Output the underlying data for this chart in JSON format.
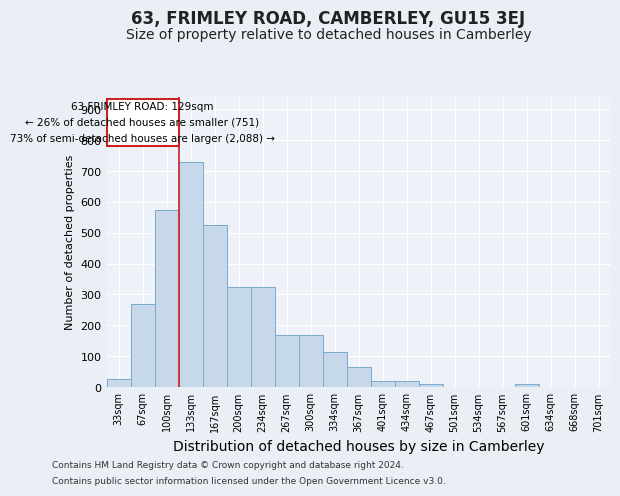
{
  "title": "63, FRIMLEY ROAD, CAMBERLEY, GU15 3EJ",
  "subtitle": "Size of property relative to detached houses in Camberley",
  "xlabel": "Distribution of detached houses by size in Camberley",
  "ylabel": "Number of detached properties",
  "categories": [
    "33sqm",
    "67sqm",
    "100sqm",
    "133sqm",
    "167sqm",
    "200sqm",
    "234sqm",
    "267sqm",
    "300sqm",
    "334sqm",
    "367sqm",
    "401sqm",
    "434sqm",
    "467sqm",
    "501sqm",
    "534sqm",
    "567sqm",
    "601sqm",
    "634sqm",
    "668sqm",
    "701sqm"
  ],
  "values": [
    25,
    270,
    575,
    730,
    525,
    325,
    325,
    170,
    170,
    115,
    65,
    20,
    20,
    10,
    0,
    0,
    0,
    10,
    0,
    0,
    0
  ],
  "bar_color": "#c8d8eb",
  "bar_edge_color": "#7aaac8",
  "annotation_line1": "63 FRIMLEY ROAD: 129sqm",
  "annotation_line2": "← 26% of detached houses are smaller (751)",
  "annotation_line3": "73% of semi-detached houses are larger (2,088) →",
  "vline_color": "#cc2222",
  "vline_bar_index": 3,
  "ylim": [
    0,
    940
  ],
  "yticks": [
    0,
    100,
    200,
    300,
    400,
    500,
    600,
    700,
    800,
    900
  ],
  "footnote1": "Contains HM Land Registry data © Crown copyright and database right 2024.",
  "footnote2": "Contains public sector information licensed under the Open Government Licence v3.0.",
  "bg_color": "#eaeef5",
  "plot_bg_color": "#edf1f8",
  "grid_color": "#ffffff",
  "title_fontsize": 12,
  "subtitle_fontsize": 10,
  "xlabel_fontsize": 10,
  "ylabel_fontsize": 8
}
